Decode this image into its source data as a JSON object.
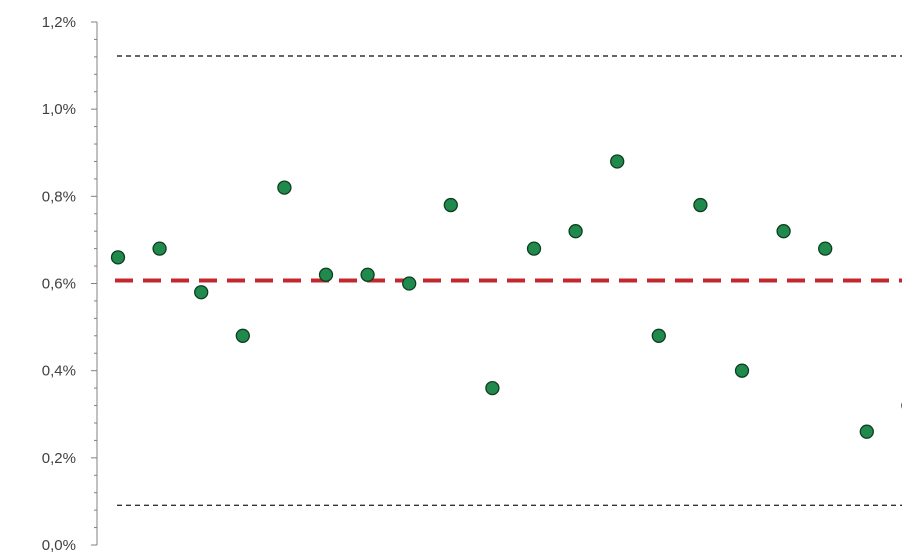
{
  "chart_data": {
    "type": "scatter",
    "title": "",
    "xlabel": "",
    "ylabel": "",
    "ylim": [
      0,
      0.012
    ],
    "y_tick_labels": [
      "0,0%",
      "0,2%",
      "0,4%",
      "0,6%",
      "0,8%",
      "1,0%",
      "1,2%"
    ],
    "y_ticks": [
      0,
      0.002,
      0.004,
      0.006,
      0.008,
      0.01,
      0.012
    ],
    "grid": false,
    "legend": "none",
    "x": [
      1,
      2,
      3,
      4,
      5,
      6,
      7,
      8,
      9,
      10,
      11,
      12,
      13,
      14,
      15,
      16,
      17,
      18,
      19,
      20
    ],
    "values": [
      0.0066,
      0.0068,
      0.0058,
      0.0048,
      0.0082,
      0.0062,
      0.0062,
      0.006,
      0.0078,
      0.0036,
      0.0068,
      0.0072,
      0.0088,
      0.0048,
      0.0078,
      0.004,
      0.0072,
      0.0068,
      0.0026,
      0.0032
    ],
    "reference_lines": [
      {
        "role": "mean",
        "value": 0.00607,
        "style": "dashed-thick",
        "color": "#c0282d"
      },
      {
        "role": "upper-limit",
        "value": 0.01122,
        "style": "dashed-thin",
        "color": "#333333"
      },
      {
        "role": "lower-limit",
        "value": 0.00091,
        "style": "dashed-thin",
        "color": "#333333"
      }
    ],
    "colors": {
      "marker_fill": "#1f8a4c",
      "marker_stroke": "#0f3d22",
      "axis": "#808080"
    }
  }
}
